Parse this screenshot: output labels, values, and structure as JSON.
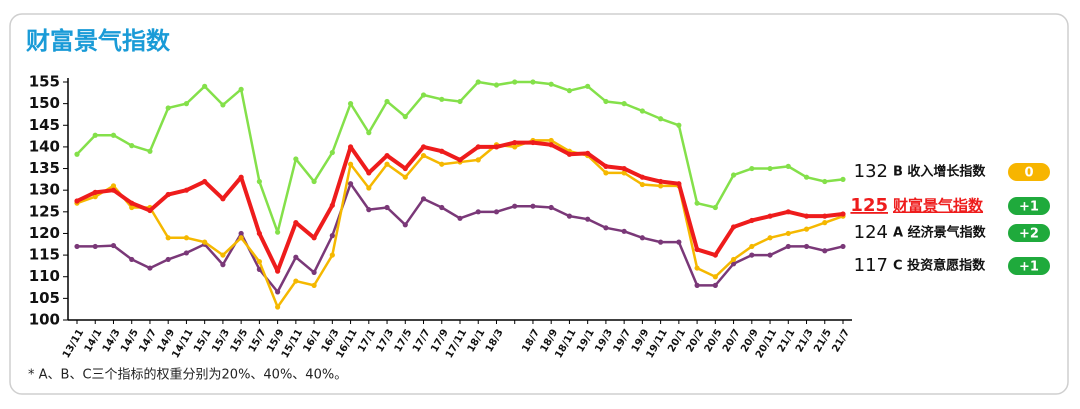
{
  "chart_data": {
    "type": "line",
    "title": "财富景气指数",
    "note": "* A、B、C三个指标的权重分别为20%、40%、40%。",
    "categories": [
      "13/11",
      "14/1",
      "14/3",
      "14/5",
      "14/7",
      "14/9",
      "14/11",
      "15/1",
      "15/3",
      "15/5",
      "15/7",
      "15/9",
      "15/11",
      "16/1",
      "16/3",
      "16/11",
      "17/1",
      "17/3",
      "17/5",
      "17/7",
      "17/9",
      "17/11",
      "18/1",
      "18/3",
      null,
      "18/7",
      "18/9",
      "18/11",
      "19/1",
      "19/3",
      "19/7",
      "19/9",
      "19/11",
      "20/1",
      "20/2",
      "20/5",
      "20/7",
      "20/9",
      "20/11",
      "21/1",
      "21/3",
      "21/5",
      "21/7"
    ],
    "ylim": [
      100,
      155
    ],
    "yticks": [
      100,
      105,
      110,
      115,
      120,
      125,
      130,
      135,
      140,
      145,
      150,
      155
    ],
    "series": [
      {
        "name": "B 收入增长指数",
        "current": 132,
        "change": "0",
        "change_color": "#f7b500",
        "color": "#84e04a",
        "width": 2.5,
        "values": [
          138.3,
          142.7,
          142.7,
          140.3,
          139,
          149,
          150,
          154,
          149.7,
          153.3,
          132,
          120.3,
          137.2,
          132,
          138.7,
          150,
          143.3,
          150.5,
          147,
          152,
          151,
          150.5,
          155,
          154.3,
          155,
          155,
          154.5,
          153,
          154,
          150.5,
          150,
          148.3,
          146.5,
          145,
          127,
          126,
          133.5,
          135,
          135,
          135.5,
          133,
          132,
          132.5
        ]
      },
      {
        "name": "财富景气指数",
        "current": 125,
        "change": "+1",
        "change_color": "#1faa3c",
        "color": "#ee1c1c",
        "width": 4,
        "values": [
          127.5,
          129.5,
          130,
          127,
          125.3,
          129,
          130,
          132,
          128,
          133,
          120,
          111.3,
          122.5,
          119,
          126.5,
          140,
          134,
          138,
          135,
          140,
          139,
          137,
          140,
          140,
          141,
          141,
          140.5,
          138.3,
          138.5,
          135.5,
          135,
          133,
          132,
          131.5,
          116.3,
          115,
          121.5,
          123,
          124,
          125,
          124,
          124,
          124.5
        ]
      },
      {
        "name": "A 经济景气指数",
        "current": 124,
        "change": "+2",
        "change_color": "#1faa3c",
        "color": "#f5b800",
        "width": 2.5,
        "values": [
          127,
          128.5,
          131,
          126,
          126,
          119,
          119,
          118,
          115,
          119,
          113.5,
          103,
          109,
          108,
          115,
          136,
          130.5,
          136,
          133,
          138,
          136,
          136.5,
          137,
          140.5,
          140,
          141.5,
          141.5,
          139,
          138,
          134,
          134,
          131.3,
          131,
          131,
          112,
          110,
          114,
          117,
          119,
          120,
          121,
          122.5,
          124
        ]
      },
      {
        "name": "C 投资意愿指数",
        "current": 117,
        "change": "+1",
        "change_color": "#1faa3c",
        "color": "#7a3878",
        "width": 2.5,
        "values": [
          117,
          117,
          117.2,
          114,
          112,
          114,
          115.5,
          117.5,
          112.8,
          120,
          111.7,
          106.5,
          114.5,
          111,
          119.5,
          131.5,
          125.5,
          126,
          122,
          128,
          126,
          123.5,
          125,
          125,
          126.3,
          126.3,
          126,
          124,
          123.3,
          121.3,
          120.5,
          119,
          118,
          118,
          108,
          108,
          113,
          115,
          115,
          117,
          117,
          116,
          117
        ]
      }
    ]
  }
}
